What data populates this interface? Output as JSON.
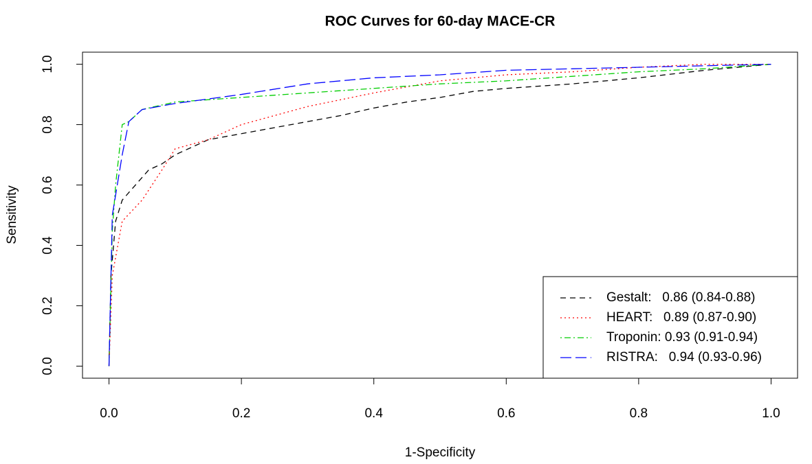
{
  "chart_data": {
    "type": "line",
    "title": "ROC Curves for 60-day MACE-CR",
    "xlabel": "1-Specificity",
    "ylabel": "Sensitivity",
    "xlim": [
      -0.04,
      1.04
    ],
    "ylim": [
      -0.04,
      1.04
    ],
    "xticks": [
      {
        "value": 0,
        "label": "0.0"
      },
      0.2,
      0.4,
      0.6,
      0.8,
      {
        "value": 1,
        "label": "1.0"
      }
    ],
    "yticks": [
      {
        "value": 0,
        "label": "0.0"
      },
      0.2,
      0.4,
      0.6,
      0.8,
      {
        "value": 1,
        "label": "1.0"
      }
    ],
    "legend": "bottom-right",
    "series": [
      {
        "name": "Gestalt:   0.86 (0.84-0.88)",
        "color": "#000000",
        "linestyle": "dashed",
        "x": [
          0,
          0.003,
          0.01,
          0.02,
          0.04,
          0.06,
          0.08,
          0.1,
          0.15,
          0.2,
          0.25,
          0.3,
          0.35,
          0.4,
          0.45,
          0.5,
          0.55,
          0.6,
          0.7,
          0.8,
          0.9,
          1
        ],
        "values": [
          0,
          0.3,
          0.48,
          0.55,
          0.6,
          0.65,
          0.67,
          0.7,
          0.75,
          0.77,
          0.79,
          0.81,
          0.83,
          0.855,
          0.875,
          0.89,
          0.91,
          0.92,
          0.935,
          0.955,
          0.98,
          1
        ]
      },
      {
        "name": "HEART:   0.89 (0.87-0.90)",
        "color": "#ff0000",
        "linestyle": "dotted",
        "x": [
          0,
          0.005,
          0.02,
          0.05,
          0.08,
          0.1,
          0.15,
          0.2,
          0.3,
          0.4,
          0.5,
          0.6,
          0.7,
          0.8,
          0.9,
          1
        ],
        "values": [
          0,
          0.3,
          0.48,
          0.55,
          0.65,
          0.72,
          0.75,
          0.8,
          0.86,
          0.905,
          0.945,
          0.965,
          0.975,
          0.99,
          1,
          1
        ]
      },
      {
        "name": "Troponin: 0.93 (0.91-0.94)",
        "color": "#00cd00",
        "linestyle": "dotdash",
        "x": [
          0,
          0.005,
          0.01,
          0.02,
          0.03,
          0.05,
          0.1,
          0.2,
          0.3,
          0.4,
          0.5,
          0.6,
          0.7,
          0.8,
          0.9,
          1
        ],
        "values": [
          0,
          0.45,
          0.6,
          0.8,
          0.81,
          0.85,
          0.875,
          0.89,
          0.905,
          0.92,
          0.935,
          0.945,
          0.96,
          0.975,
          0.985,
          1
        ]
      },
      {
        "name": "RISTRA:   0.94 (0.93-0.96)",
        "color": "#0000ff",
        "linestyle": "longdash",
        "x": [
          0,
          0.005,
          0.02,
          0.03,
          0.05,
          0.1,
          0.2,
          0.3,
          0.4,
          0.5,
          0.6,
          0.7,
          0.8,
          0.9,
          1
        ],
        "values": [
          0,
          0.5,
          0.7,
          0.81,
          0.85,
          0.87,
          0.9,
          0.935,
          0.955,
          0.965,
          0.98,
          0.985,
          0.99,
          0.995,
          1
        ]
      }
    ]
  }
}
